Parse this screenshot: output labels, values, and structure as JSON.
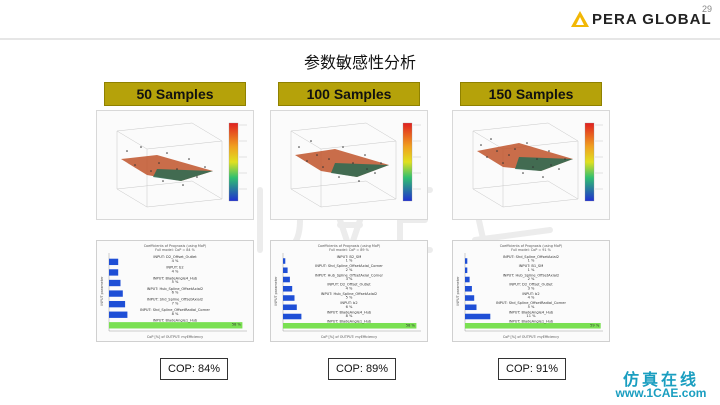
{
  "page_number": "29",
  "brand": {
    "name": "PERA GLOBAL"
  },
  "title": "参数敏感性分析",
  "columns": [
    {
      "samples_label": "50 Samples",
      "coi_title": "Coefficients of Prognosis (using MoP)",
      "coi_subtitle": "Full model: CoP = 84 %",
      "ylabel": "INPUT parameter",
      "xlabel": "CoP [%] of OUTPUT: myEfficiency",
      "bars": [
        {
          "label": "INPUT: D2_Offset_Outlet",
          "pct": "4 %",
          "value": 4
        },
        {
          "label": "INPUT: b2",
          "pct": "4 %",
          "value": 4
        },
        {
          "label": "INPUT: BladeAngle4_Hub",
          "pct": "5 %",
          "value": 5
        },
        {
          "label": "INPUT: Hub_Spline_OffsetAxial2",
          "pct": "6 %",
          "value": 6
        },
        {
          "label": "INPUT: Shd_Spline_OffsetAxial2",
          "pct": "7 %",
          "value": 7
        },
        {
          "label": "INPUT: Shd_Spline_OffsetRadial_Corner",
          "pct": "8 %",
          "value": 8
        },
        {
          "label": "INPUT: BladeAngle1_Hub",
          "pct": "58 %",
          "value": 58
        }
      ],
      "cop": "COP: 84%"
    },
    {
      "samples_label": "100 Samples",
      "coi_title": "Coefficients of Prognosis (using MoP)",
      "coi_subtitle": "Full model: CoP = 89 %",
      "ylabel": "INPUT parameter",
      "xlabel": "CoP [%] of OUTPUT: myEfficiency",
      "bars": [
        {
          "label": "INPUT: B2_SM",
          "pct": "1 %",
          "value": 1
        },
        {
          "label": "INPUT: Shd_Spline_OffsetAxial_Corner",
          "pct": "2 %",
          "value": 2
        },
        {
          "label": "INPUT: Hub_Spline_OffsetAxial_Corner",
          "pct": "3 %",
          "value": 3
        },
        {
          "label": "INPUT: D2_Offset_Outlet",
          "pct": "4 %",
          "value": 4
        },
        {
          "label": "INPUT: Hub_Spline_OffsetAxial2",
          "pct": "5 %",
          "value": 5
        },
        {
          "label": "INPUT: b2",
          "pct": "6 %",
          "value": 6
        },
        {
          "label": "INPUT: BladeAngle4_Hub",
          "pct": "8 %",
          "value": 8
        },
        {
          "label": "INPUT: BladeAngle1_Hub",
          "pct": "58 %",
          "value": 58
        }
      ],
      "cop": "COP: 89%"
    },
    {
      "samples_label": "150 Samples",
      "coi_title": "Coefficients of Prognosis (using MoP)",
      "coi_subtitle": "Full model: CoP = 91 %",
      "ylabel": "INPUT parameter",
      "xlabel": "CoP [%] of OUTPUT: myEfficiency",
      "bars": [
        {
          "label": "INPUT: Shd_Spline_OffsetAxial2",
          "pct": "1 %",
          "value": 1
        },
        {
          "label": "INPUT: B1_SM",
          "pct": "1 %",
          "value": 1
        },
        {
          "label": "INPUT: Hub_Spline_OffsetAxial2",
          "pct": "2 %",
          "value": 2
        },
        {
          "label": "INPUT: D2_Offset_Outlet",
          "pct": "3 %",
          "value": 3
        },
        {
          "label": "INPUT: b2",
          "pct": "4 %",
          "value": 4
        },
        {
          "label": "INPUT: Shd_Spline_OffsetRadial_Corner",
          "pct": "5 %",
          "value": 5
        },
        {
          "label": "INPUT: BladeAngle4_Hub",
          "pct": "11 %",
          "value": 11
        },
        {
          "label": "INPUT: BladeAngle1_Hub",
          "pct": "59 %",
          "value": 59
        }
      ],
      "cop": "COP: 91%"
    }
  ],
  "colors": {
    "sample_label_bg": "#b5a20a",
    "bar_blue": "#1f4fd6",
    "bar_green": "#7ae052",
    "footer_logo": "#1a9ec0",
    "brand_triangle": "#f2b705"
  },
  "icons": [
    "pera-global-logo-icon",
    "1cae-watermark-icon"
  ],
  "footer": {
    "cn": "仿真在线",
    "en": "www.1CAE.com"
  }
}
